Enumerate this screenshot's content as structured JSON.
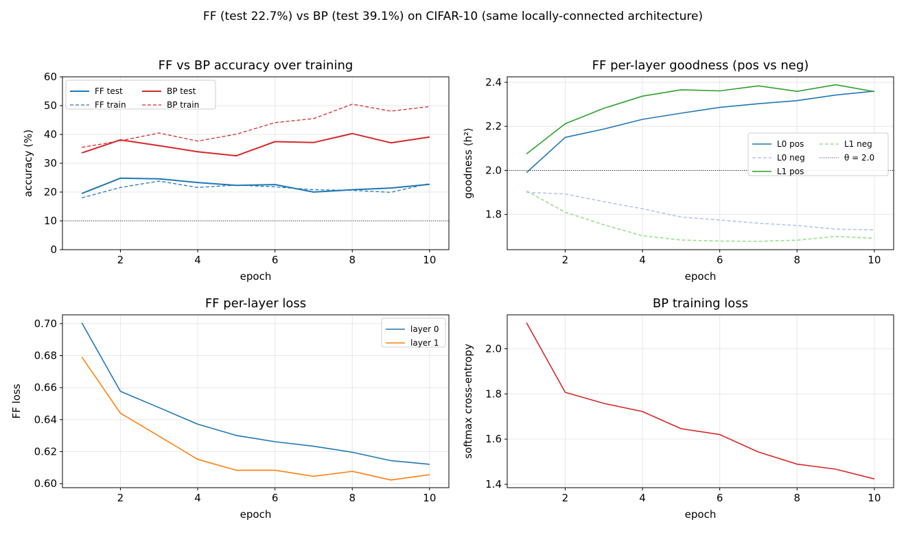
{
  "suptitle": "FF (test 22.7%) vs BP (test 39.1%) on CIFAR-10  (same locally-connected architecture)",
  "colors": {
    "ff": "#1f77b4",
    "bp": "#d62728",
    "l0_neg": "#aec7e8",
    "l1_pos": "#2ca02c",
    "l1_neg": "#98df8a",
    "layer1": "#ff7f0e",
    "reference": "#000000"
  },
  "chart_data": [
    {
      "type": "line",
      "title": "FF vs BP accuracy over training",
      "xlabel": "epoch",
      "ylabel": "accuracy (%)",
      "x": [
        1,
        2,
        3,
        4,
        5,
        6,
        7,
        8,
        9,
        10
      ],
      "xlim": [
        0.5,
        10.5
      ],
      "ylim": [
        0,
        60
      ],
      "xticks": [
        2,
        4,
        6,
        8,
        10
      ],
      "yticks": [
        0,
        10,
        20,
        30,
        40,
        50,
        60
      ],
      "ytick_decimals": 0,
      "grid": true,
      "legend": {
        "placement": "upper-left",
        "columns": 2,
        "rows": 2
      },
      "series": [
        {
          "name": "FF test",
          "color_key": "ff",
          "dash": "solid",
          "width": 2,
          "values": [
            19.5,
            24.8,
            24.6,
            23.3,
            22.3,
            22.6,
            20.0,
            20.8,
            21.4,
            22.7
          ]
        },
        {
          "name": "FF train",
          "color_key": "ff",
          "dash": "dashed",
          "width": 1.3,
          "values": [
            18.0,
            21.6,
            23.8,
            21.6,
            22.4,
            21.8,
            20.8,
            20.6,
            19.9,
            23.0
          ]
        },
        {
          "name": "BP test",
          "color_key": "bp",
          "dash": "solid",
          "width": 2,
          "values": [
            33.6,
            38.1,
            36.1,
            34.0,
            32.6,
            37.5,
            37.2,
            40.3,
            37.1,
            39.1
          ]
        },
        {
          "name": "BP train",
          "color_key": "bp",
          "dash": "dashed",
          "width": 1.3,
          "values": [
            35.5,
            37.8,
            40.5,
            37.7,
            40.1,
            44.1,
            45.5,
            50.5,
            48.1,
            49.7
          ]
        }
      ],
      "reference_line": {
        "y": 10,
        "label": ""
      }
    },
    {
      "type": "line",
      "title": "FF per-layer goodness (pos vs neg)",
      "xlabel": "epoch",
      "ylabel": "goodness  ⟨h²⟩",
      "x": [
        1,
        2,
        3,
        4,
        5,
        6,
        7,
        8,
        9,
        10
      ],
      "xlim": [
        0.5,
        10.5
      ],
      "ylim": [
        1.64,
        2.425
      ],
      "xticks": [
        2,
        4,
        6,
        8,
        10
      ],
      "yticks": [
        1.8,
        2.0,
        2.2,
        2.4
      ],
      "ytick_decimals": 1,
      "grid": true,
      "legend": {
        "placement": "center-right",
        "columns": 2,
        "rows": 3
      },
      "series": [
        {
          "name": "L0 pos",
          "color_key": "ff",
          "dash": "solid",
          "width": 1.6,
          "values": [
            1.99,
            2.15,
            2.188,
            2.232,
            2.26,
            2.286,
            2.303,
            2.317,
            2.342,
            2.36
          ]
        },
        {
          "name": "L0 neg",
          "color_key": "l0_neg",
          "dash": "dashed",
          "width": 1.6,
          "values": [
            1.9,
            1.893,
            1.858,
            1.826,
            1.788,
            1.775,
            1.76,
            1.75,
            1.733,
            1.73
          ]
        },
        {
          "name": "L1 pos",
          "color_key": "l1_pos",
          "dash": "solid",
          "width": 1.6,
          "values": [
            2.075,
            2.212,
            2.282,
            2.337,
            2.366,
            2.361,
            2.384,
            2.359,
            2.389,
            2.358
          ]
        },
        {
          "name": "L1 neg",
          "color_key": "l1_neg",
          "dash": "dashed",
          "width": 1.6,
          "values": [
            1.907,
            1.81,
            1.753,
            1.703,
            1.684,
            1.679,
            1.678,
            1.683,
            1.7,
            1.692
          ]
        }
      ],
      "reference_line": {
        "y": 2.0,
        "label": "θ = 2.0"
      }
    },
    {
      "type": "line",
      "title": "FF per-layer loss",
      "xlabel": "epoch",
      "ylabel": "FF loss",
      "x": [
        1,
        2,
        3,
        4,
        5,
        6,
        7,
        8,
        9,
        10
      ],
      "xlim": [
        0.5,
        10.5
      ],
      "ylim": [
        0.5975,
        0.7055
      ],
      "xticks": [
        2,
        4,
        6,
        8,
        10
      ],
      "yticks": [
        0.6,
        0.62,
        0.64,
        0.66,
        0.68,
        0.7
      ],
      "ytick_decimals": 2,
      "grid": true,
      "legend": {
        "placement": "upper-right",
        "columns": 1,
        "rows": 2
      },
      "series": [
        {
          "name": "layer 0",
          "color_key": "ff",
          "dash": "solid",
          "width": 1.6,
          "values": [
            0.7005,
            0.6577,
            0.6475,
            0.6372,
            0.6301,
            0.6262,
            0.6234,
            0.6196,
            0.6144,
            0.6121
          ]
        },
        {
          "name": "layer 1",
          "color_key": "layer1",
          "dash": "solid",
          "width": 1.6,
          "values": [
            0.6792,
            0.6441,
            0.6297,
            0.6152,
            0.6084,
            0.6084,
            0.6046,
            0.6077,
            0.6023,
            0.6056
          ]
        }
      ]
    },
    {
      "type": "line",
      "title": "BP training loss",
      "xlabel": "epoch",
      "ylabel": "softmax cross-entropy",
      "x": [
        1,
        2,
        3,
        4,
        5,
        6,
        7,
        8,
        9,
        10
      ],
      "xlim": [
        0.5,
        10.5
      ],
      "ylim": [
        1.385,
        2.15
      ],
      "xticks": [
        2,
        4,
        6,
        8,
        10
      ],
      "yticks": [
        1.4,
        1.6,
        1.8,
        2.0
      ],
      "ytick_decimals": 1,
      "grid": true,
      "series": [
        {
          "color_key": "bp",
          "dash": "solid",
          "width": 1.6,
          "values": [
            2.115,
            1.807,
            1.758,
            1.722,
            1.646,
            1.62,
            1.543,
            1.489,
            1.467,
            1.424
          ]
        }
      ]
    }
  ]
}
